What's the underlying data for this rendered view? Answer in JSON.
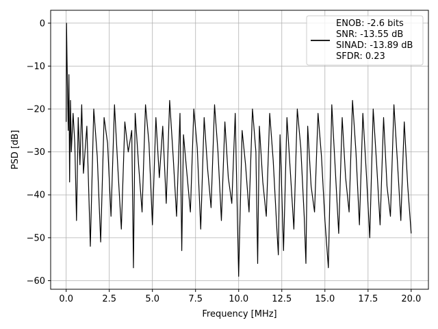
{
  "chart_data": {
    "type": "line",
    "xlabel": "Frequency [MHz]",
    "ylabel": "PSD [dB]",
    "xlim": [
      -0.9,
      21.0
    ],
    "ylim": [
      -62.0,
      3.0
    ],
    "xticks": [
      0.0,
      2.5,
      5.0,
      7.5,
      10.0,
      12.5,
      15.0,
      17.5,
      20.0
    ],
    "xtick_labels": [
      "0.0",
      "2.5",
      "5.0",
      "7.5",
      "10.0",
      "12.5",
      "15.0",
      "17.5",
      "20.0"
    ],
    "yticks": [
      0,
      -10,
      -20,
      -30,
      -40,
      -50,
      -60
    ],
    "ytick_labels": [
      "0",
      "−10",
      "−20",
      "−30",
      "−40",
      "−50",
      "−60"
    ],
    "grid": true,
    "legend_position": "top-right",
    "legend": {
      "lines": [
        "ENOB: -2.6 bits",
        "SNR: -13.55 dB",
        "SINAD: -13.89 dB",
        "SFDR: 0.23"
      ],
      "line_color": "#000000"
    },
    "series": [
      {
        "color": "#000000",
        "x": [
          0.0,
          0.02,
          0.05,
          0.08,
          0.12,
          0.16,
          0.2,
          0.25,
          0.3,
          0.4,
          0.5,
          0.6,
          0.7,
          0.8,
          0.9,
          1.0,
          1.2,
          1.4,
          1.6,
          1.8,
          2.0,
          2.2,
          2.4,
          2.6,
          2.8,
          3.0,
          3.2,
          3.4,
          3.6,
          3.8,
          3.9,
          4.0,
          4.2,
          4.4,
          4.6,
          4.8,
          5.0,
          5.2,
          5.4,
          5.6,
          5.8,
          6.0,
          6.2,
          6.4,
          6.6,
          6.7,
          6.8,
          7.0,
          7.2,
          7.4,
          7.6,
          7.8,
          8.0,
          8.2,
          8.4,
          8.6,
          8.8,
          9.0,
          9.2,
          9.4,
          9.6,
          9.8,
          10.0,
          10.2,
          10.4,
          10.6,
          10.8,
          11.0,
          11.1,
          11.2,
          11.4,
          11.6,
          11.8,
          12.0,
          12.2,
          12.3,
          12.4,
          12.6,
          12.8,
          13.0,
          13.2,
          13.4,
          13.6,
          13.8,
          13.9,
          14.0,
          14.2,
          14.4,
          14.6,
          14.8,
          15.0,
          15.2,
          15.4,
          15.6,
          15.8,
          16.0,
          16.2,
          16.4,
          16.6,
          16.8,
          17.0,
          17.2,
          17.4,
          17.6,
          17.8,
          18.0,
          18.2,
          18.4,
          18.6,
          18.8,
          19.0,
          19.2,
          19.4,
          19.6,
          19.8,
          20.0
        ],
        "y": [
          -23,
          0,
          -8,
          -16,
          -25,
          -12,
          -37,
          -18,
          -30,
          -21,
          -28,
          -46,
          -22,
          -33,
          -19,
          -35,
          -24,
          -52,
          -20,
          -31,
          -51,
          -22,
          -28,
          -45,
          -19,
          -34,
          -48,
          -23,
          -30,
          -25,
          -57,
          -21,
          -33,
          -44,
          -19,
          -28,
          -47,
          -22,
          -36,
          -24,
          -42,
          -18,
          -31,
          -45,
          -21,
          -53,
          -26,
          -35,
          -44,
          -20,
          -29,
          -48,
          -22,
          -34,
          -43,
          -19,
          -30,
          -46,
          -23,
          -36,
          -42,
          -21,
          -59,
          -25,
          -33,
          -44,
          -20,
          -30,
          -56,
          -24,
          -37,
          -45,
          -21,
          -32,
          -47,
          -54,
          -26,
          -53,
          -22,
          -35,
          -48,
          -20,
          -29,
          -45,
          -56,
          -24,
          -38,
          -44,
          -21,
          -31,
          -46,
          -57,
          -19,
          -34,
          -49,
          -22,
          -36,
          -44,
          -18,
          -30,
          -47,
          -21,
          -35,
          -50,
          -20,
          -33,
          -47,
          -22,
          -38,
          -45,
          -19,
          -32,
          -46,
          -23,
          -38,
          -49
        ]
      }
    ]
  }
}
